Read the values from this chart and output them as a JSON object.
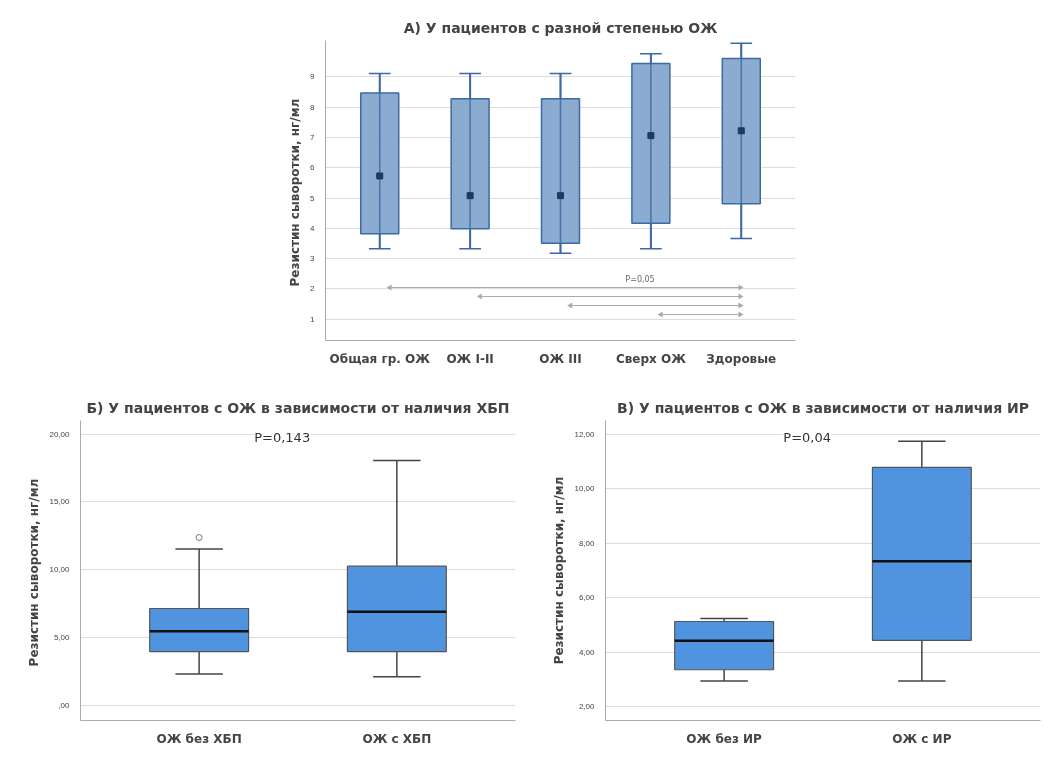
{
  "chart_data": [
    {
      "type": "box",
      "title": "А) У пациентов с разной степенью ОЖ",
      "ylabel": "Резистин  сыворотки, нг/мл",
      "categories": [
        "Общая гр. ОЖ",
        "ОЖ I-II",
        "ОЖ III",
        "Сверх ОЖ",
        "Здоровые"
      ],
      "marker": "square",
      "grid": "y",
      "ylim": [
        0.3,
        10.2
      ],
      "yticks": [
        1,
        2,
        3,
        4,
        5,
        6,
        7,
        8,
        9
      ],
      "annotations": [
        "P=0,05"
      ],
      "series": [
        {
          "color": "#86a7cf",
          "boxes": [
            {
              "low": 3.33,
              "q1": 3.82,
              "median": 5.73,
              "q3": 8.47,
              "high": 9.11
            },
            {
              "low": 3.33,
              "q1": 3.99,
              "median": 5.08,
              "q3": 8.28,
              "high": 9.11
            },
            {
              "low": 3.18,
              "q1": 3.51,
              "median": 5.08,
              "q3": 8.28,
              "high": 9.11
            },
            {
              "low": 3.33,
              "q1": 4.17,
              "median": 7.06,
              "q3": 9.44,
              "high": 9.76
            },
            {
              "low": 3.67,
              "q1": 4.81,
              "median": 7.22,
              "q3": 9.61,
              "high": 10.11
            }
          ]
        }
      ]
    },
    {
      "type": "box",
      "title": "Б) У пациентов с ОЖ в зависимости от наличия ХБП",
      "ylabel": "Резистин  сыворотки, нг/мл",
      "categories": [
        "ОЖ без ХБП",
        "ОЖ с ХБП"
      ],
      "grid": "y",
      "ylim": [
        -1.1,
        21
      ],
      "yticks": [
        {
          "value": 0,
          "label": ",00"
        },
        {
          "value": 5,
          "label": "5,00"
        },
        {
          "value": 10,
          "label": "10,00"
        },
        {
          "value": 15,
          "label": "15,00"
        },
        {
          "value": 20,
          "label": "20,00"
        }
      ],
      "annotations": [
        "P=0,143"
      ],
      "series": [
        {
          "color": "#5094e0",
          "boxes": [
            {
              "low": 2.33,
              "q1": 3.98,
              "median": 5.48,
              "q3": 7.15,
              "high": 11.54,
              "outliers": [
                12.38
              ]
            },
            {
              "low": 2.13,
              "q1": 3.98,
              "median": 6.92,
              "q3": 10.27,
              "high": 18.05
            }
          ]
        }
      ]
    },
    {
      "type": "box",
      "title": "В) У пациентов с ОЖ в зависимости от наличия ИР",
      "ylabel": "Резистин сыворотки, нг/мл",
      "categories": [
        "ОЖ без ИР",
        "ОЖ с ИР"
      ],
      "grid": "y",
      "ylim": [
        1.5,
        12.5
      ],
      "yticks": [
        {
          "value": 2,
          "label": "2,00"
        },
        {
          "value": 4,
          "label": "4,00"
        },
        {
          "value": 6,
          "label": "6,00"
        },
        {
          "value": 8,
          "label": "8,00"
        },
        {
          "value": 10,
          "label": "10,00"
        },
        {
          "value": 12,
          "label": "12,00"
        }
      ],
      "annotations": [
        "P=0,04"
      ],
      "series": [
        {
          "color": "#5094e0",
          "boxes": [
            {
              "low": 2.95,
              "q1": 3.36,
              "median": 4.42,
              "q3": 5.13,
              "high": 5.24
            },
            {
              "low": 2.95,
              "q1": 4.44,
              "median": 7.34,
              "q3": 10.78,
              "high": 11.74
            }
          ]
        }
      ]
    }
  ]
}
